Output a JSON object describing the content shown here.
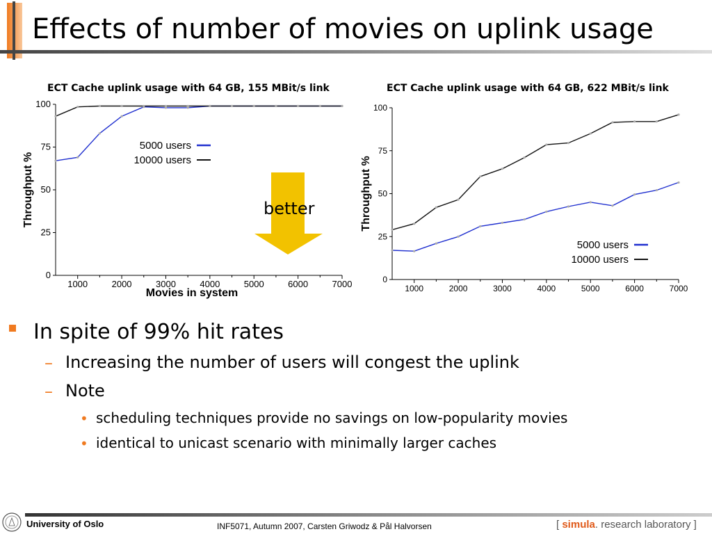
{
  "slide": {
    "title": "Effects of number of movies on uplink usage",
    "arrow_label": "better",
    "bullet": "In spite of 99% hit rates",
    "sub1": "Increasing the number of users will congest the uplink",
    "sub2": "Note",
    "subsub1": "scheduling techniques provide no savings on low-popularity movies",
    "subsub2": "identical to unicast scenario with minimally larger caches"
  },
  "footer": {
    "university": "University of Oslo",
    "course": "INF5071,  Autumn 2007,  Carsten Griwodz & Pål Halvorsen",
    "lab_bracket_open": "[",
    "lab_name": "simula",
    "lab_rest": ". research laboratory",
    "lab_bracket_close": "]"
  },
  "colors": {
    "accent_orange": "#f07a20",
    "arrow_yellow": "#f2c200",
    "series_blue": "#1f2fcf",
    "series_black": "#111111",
    "lab_red": "#e05a1a"
  },
  "chart_data": [
    {
      "type": "line",
      "title": "ECT Cache uplink usage with 64 GB, 155 MBit/s link",
      "xlabel": "Movies in system",
      "ylabel": "Throughput %",
      "xlim": [
        500,
        7000
      ],
      "ylim": [
        0,
        100
      ],
      "xticks": [
        "1000",
        "2000",
        "3000",
        "4000",
        "5000",
        "6000",
        "7000"
      ],
      "yticks": [
        "0",
        "25",
        "50",
        "75",
        "100"
      ],
      "legend": "center-right",
      "series": [
        {
          "name": "5000 users",
          "color": "#1f2fcf",
          "x": [
            500,
            1000,
            1500,
            2000,
            2500,
            3000,
            3500,
            4000,
            4500,
            5000,
            5500,
            6000,
            6500,
            7000
          ],
          "values": [
            67,
            69,
            83,
            93,
            98.5,
            98,
            98,
            99,
            99,
            99,
            99,
            99,
            99,
            99
          ]
        },
        {
          "name": "10000 users",
          "color": "#111111",
          "x": [
            500,
            1000,
            1500,
            2000,
            2500,
            3000,
            3500,
            4000,
            4500,
            5000,
            5500,
            6000,
            6500,
            7000
          ],
          "values": [
            93,
            98.5,
            99,
            99,
            99,
            99,
            99,
            99,
            99,
            99,
            99,
            99,
            99,
            99
          ]
        }
      ]
    },
    {
      "type": "line",
      "title": "ECT Cache uplink usage with 64 GB, 622 MBit/s link",
      "xlabel": "",
      "ylabel": "Throughput %",
      "xlim": [
        500,
        7000
      ],
      "ylim": [
        0,
        100
      ],
      "xticks": [
        "1000",
        "2000",
        "3000",
        "4000",
        "5000",
        "6000",
        "7000"
      ],
      "yticks": [
        "0",
        "25",
        "50",
        "75",
        "100"
      ],
      "legend": "bottom-right",
      "series": [
        {
          "name": "5000 users",
          "color": "#1f2fcf",
          "x": [
            500,
            1000,
            1500,
            2000,
            2500,
            3000,
            3500,
            4000,
            4500,
            5000,
            5500,
            6000,
            6500,
            7000
          ],
          "values": [
            17,
            16.5,
            21,
            25,
            31,
            33,
            35,
            39.5,
            42.5,
            45,
            43,
            49.5,
            52,
            56.5
          ]
        },
        {
          "name": "10000 users",
          "color": "#111111",
          "x": [
            500,
            1000,
            1500,
            2000,
            2500,
            3000,
            3500,
            4000,
            4500,
            5000,
            5500,
            6000,
            6500,
            7000
          ],
          "values": [
            29,
            32.5,
            42,
            46.5,
            60,
            64.5,
            71,
            78.5,
            79.5,
            85,
            91.5,
            92,
            92,
            96
          ]
        }
      ]
    }
  ]
}
